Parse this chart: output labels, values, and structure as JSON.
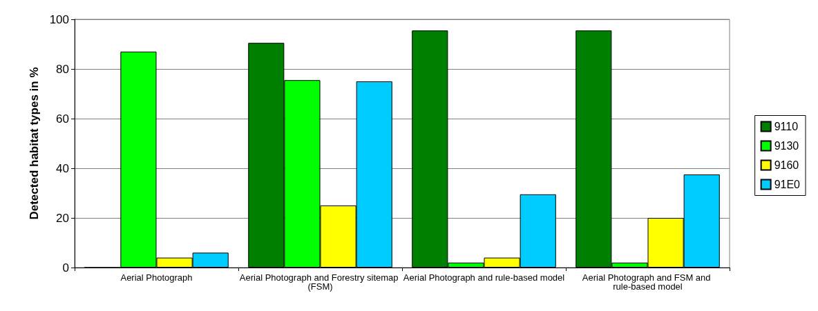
{
  "chart_data": {
    "type": "bar",
    "ylabel": "Detected habitat types in %",
    "categories": [
      "Aerial Photograph",
      "Aerial Photograph and Forestry sitemap (FSM)",
      "Aerial Photograph and rule-based model",
      "Aerial Photograph and FSM and rule-based model"
    ],
    "series": [
      {
        "name": "9110",
        "color": "#008000",
        "values": [
          0,
          90.5,
          95.5,
          95.5
        ]
      },
      {
        "name": "9130",
        "color": "#00ff00",
        "values": [
          87,
          75.5,
          2,
          2
        ]
      },
      {
        "name": "9160",
        "color": "#ffff00",
        "values": [
          4,
          25,
          4,
          20
        ]
      },
      {
        "name": "91E0",
        "color": "#00ccff",
        "values": [
          6,
          75,
          29.5,
          37.5
        ]
      }
    ],
    "ylim": [
      0,
      100
    ],
    "yticks": [
      0,
      20,
      40,
      60,
      80,
      100
    ],
    "grid": "y",
    "legend": "right"
  }
}
